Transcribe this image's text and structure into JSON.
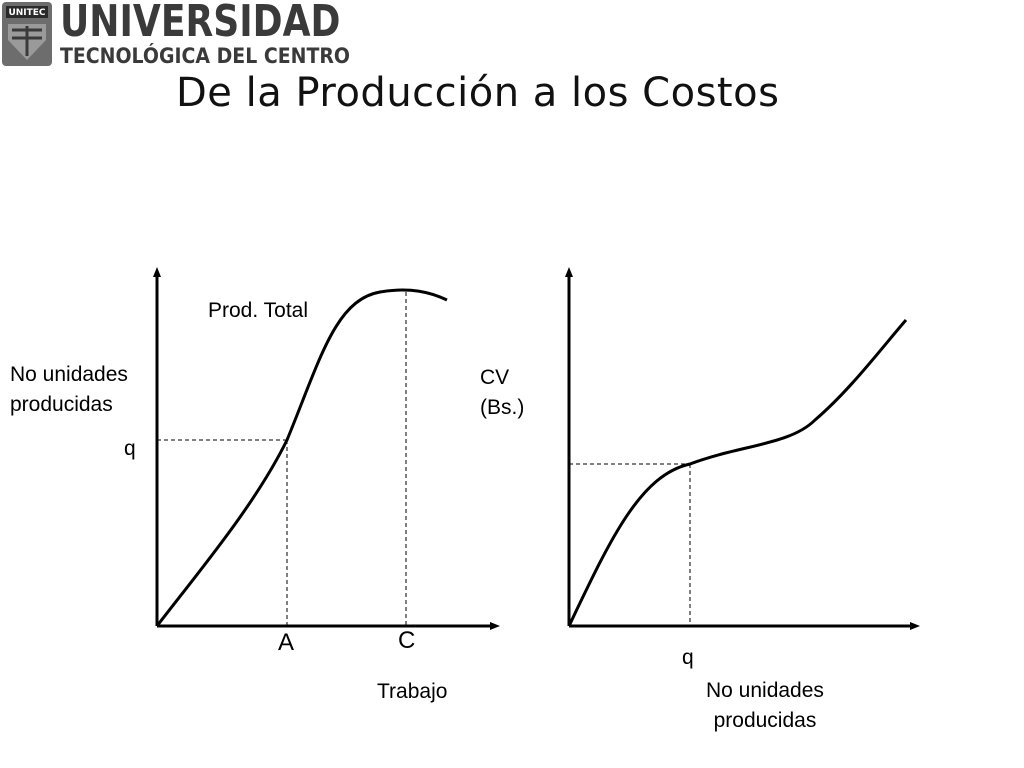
{
  "logo": {
    "badge": "UNITEC",
    "line1": "UNIVERSIDAD",
    "line2": "TECNOLÓGICA DEL CENTRO"
  },
  "title": "De la Producción a los Costos",
  "left_chart": {
    "y_axis_label": [
      "No unidades",
      "producidas"
    ],
    "curve_label": "Prod. Total",
    "y_marker": "q",
    "x_marker_a": "A",
    "x_marker_c": "C",
    "x_axis_label": "Trabajo"
  },
  "right_chart": {
    "y_axis_label": [
      "CV",
      "(Bs.)"
    ],
    "x_marker": "q",
    "x_axis_label": [
      "No unidades",
      "producidas"
    ]
  }
}
